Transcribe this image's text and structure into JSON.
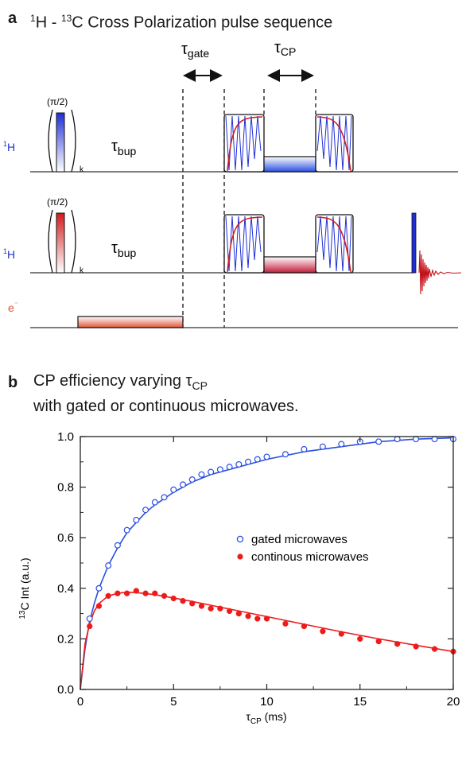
{
  "panel_a": {
    "letter": "a",
    "title_sup1": "1",
    "title_part1": "H - ",
    "title_sup2": "13",
    "title_part2": "C Cross Polarization pulse sequence",
    "tau_gate_main": "τ",
    "tau_gate_sub": "gate",
    "tau_cp_main": "τ",
    "tau_cp_sub": "CP",
    "pulse_label": "(π/2)",
    "k_label": "k",
    "tau_bup_main": "τ",
    "tau_bup_sub": "bup",
    "channels": [
      {
        "sup": "1",
        "name": "H",
        "color": "#2233cc"
      },
      {
        "sup": "1",
        "name": "H",
        "color": "#2233cc"
      },
      {
        "sup": "",
        "name": "e",
        "suffix": "⁻",
        "color": "#e0553a"
      }
    ],
    "colors": {
      "blue": "#1f2fd6",
      "red": "#d21c1c",
      "salmon": "#e0553a"
    }
  },
  "panel_b": {
    "letter": "b",
    "title_line1": "CP efficiency varying τ",
    "title_line1_sub": "CP",
    "title_line2": "with gated or continuous microwaves."
  },
  "chart_data": {
    "type": "scatter",
    "xlabel_main": "τ",
    "xlabel_sub": "CP",
    "xlabel_unit": " (ms)",
    "ylabel_sup": "13",
    "ylabel_main": "C Int (a.u.)",
    "xlim": [
      0,
      20
    ],
    "ylim": [
      0,
      1.0
    ],
    "x_ticks": [
      0,
      5,
      10,
      15,
      20
    ],
    "y_ticks": [
      0.0,
      0.2,
      0.4,
      0.6,
      0.8,
      1.0
    ],
    "y_tick_labels": [
      "0.0",
      "0.2",
      "0.4",
      "0.6",
      "0.8",
      "1.0"
    ],
    "legend_position": "center-right",
    "series": [
      {
        "name": "gated microwaves",
        "marker": "open-circle",
        "color": "#2a4fe0",
        "x": [
          0.5,
          1.0,
          1.5,
          2.0,
          2.5,
          3.0,
          3.5,
          4.0,
          4.5,
          5.0,
          5.5,
          6.0,
          6.5,
          7.0,
          7.5,
          8.0,
          8.5,
          9.0,
          9.5,
          10.0,
          11.0,
          12.0,
          13.0,
          14.0,
          15.0,
          16.0,
          17.0,
          18.0,
          19.0,
          20.0
        ],
        "y": [
          0.28,
          0.4,
          0.49,
          0.57,
          0.63,
          0.67,
          0.71,
          0.74,
          0.76,
          0.79,
          0.81,
          0.83,
          0.85,
          0.86,
          0.87,
          0.88,
          0.89,
          0.9,
          0.91,
          0.92,
          0.93,
          0.95,
          0.96,
          0.97,
          0.98,
          0.98,
          0.99,
          0.99,
          0.99,
          0.99
        ]
      },
      {
        "name": "continous microwaves",
        "marker": "filled-circle",
        "color": "#ee1b1b",
        "x": [
          0.5,
          1.0,
          1.5,
          2.0,
          2.5,
          3.0,
          3.5,
          4.0,
          4.5,
          5.0,
          5.5,
          6.0,
          6.5,
          7.0,
          7.5,
          8.0,
          8.5,
          9.0,
          9.5,
          10.0,
          11.0,
          12.0,
          13.0,
          14.0,
          15.0,
          16.0,
          17.0,
          18.0,
          19.0,
          20.0
        ],
        "y": [
          0.25,
          0.33,
          0.37,
          0.38,
          0.38,
          0.39,
          0.38,
          0.38,
          0.37,
          0.36,
          0.35,
          0.34,
          0.33,
          0.32,
          0.32,
          0.31,
          0.3,
          0.29,
          0.28,
          0.28,
          0.26,
          0.25,
          0.23,
          0.22,
          0.2,
          0.19,
          0.18,
          0.17,
          0.16,
          0.15
        ]
      }
    ],
    "fits": [
      {
        "series": "gated microwaves",
        "color": "#2a4fe0",
        "x": [
          0,
          0.25,
          0.5,
          0.75,
          1.0,
          1.5,
          2.0,
          2.5,
          3.0,
          3.5,
          4.0,
          5.0,
          6.0,
          7.0,
          8.0,
          9.0,
          10.0,
          12.0,
          14.0,
          16.0,
          18.0,
          20.0
        ],
        "y": [
          0.0,
          0.16,
          0.27,
          0.34,
          0.4,
          0.49,
          0.56,
          0.62,
          0.66,
          0.7,
          0.73,
          0.78,
          0.82,
          0.85,
          0.87,
          0.89,
          0.91,
          0.94,
          0.96,
          0.98,
          0.99,
          0.995
        ]
      },
      {
        "series": "continous microwaves",
        "color": "#ee1b1b",
        "x": [
          0,
          0.25,
          0.5,
          0.75,
          1.0,
          1.5,
          2.0,
          2.5,
          3.0,
          4.0,
          5.0,
          6.0,
          7.0,
          8.0,
          9.0,
          10.0,
          12.0,
          14.0,
          16.0,
          18.0,
          20.0
        ],
        "y": [
          0.0,
          0.18,
          0.26,
          0.31,
          0.34,
          0.37,
          0.38,
          0.385,
          0.383,
          0.375,
          0.362,
          0.348,
          0.333,
          0.318,
          0.303,
          0.288,
          0.258,
          0.228,
          0.2,
          0.175,
          0.15
        ]
      }
    ]
  }
}
